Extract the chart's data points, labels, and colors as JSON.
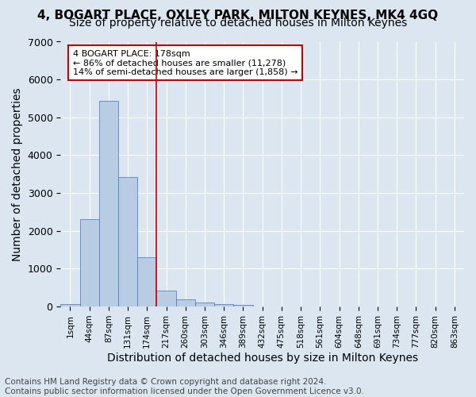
{
  "title1": "4, BOGART PLACE, OXLEY PARK, MILTON KEYNES, MK4 4GQ",
  "title2": "Size of property relative to detached houses in Milton Keynes",
  "xlabel": "Distribution of detached houses by size in Milton Keynes",
  "ylabel": "Number of detached properties",
  "footer1": "Contains HM Land Registry data © Crown copyright and database right 2024.",
  "footer2": "Contains public sector information licensed under the Open Government Licence v3.0.",
  "bin_labels": [
    "1sqm",
    "44sqm",
    "87sqm",
    "131sqm",
    "174sqm",
    "217sqm",
    "260sqm",
    "303sqm",
    "346sqm",
    "389sqm",
    "432sqm",
    "475sqm",
    "518sqm",
    "561sqm",
    "604sqm",
    "648sqm",
    "691sqm",
    "734sqm",
    "777sqm",
    "820sqm",
    "863sqm"
  ],
  "bar_values": [
    75,
    2310,
    5440,
    3420,
    1310,
    430,
    185,
    110,
    70,
    40,
    0,
    0,
    0,
    0,
    0,
    0,
    0,
    0,
    0,
    0,
    0
  ],
  "bar_color": "#b8cce4",
  "bar_edgecolor": "#4472c4",
  "vline_x_index": 4,
  "vline_color": "#cc0000",
  "annotation_text": "4 BOGART PLACE: 178sqm\n← 86% of detached houses are smaller (11,278)\n14% of semi-detached houses are larger (1,858) →",
  "annotation_box_color": "#ffffff",
  "annotation_box_edgecolor": "#cc0000",
  "ylim": [
    0,
    7000
  ],
  "yticks": [
    0,
    1000,
    2000,
    3000,
    4000,
    5000,
    6000,
    7000
  ],
  "background_color": "#dce6f1",
  "grid_color": "#ffffff",
  "title1_fontsize": 11,
  "title2_fontsize": 10,
  "xlabel_fontsize": 10,
  "ylabel_fontsize": 10,
  "footer_fontsize": 7.5,
  "tick_fontsize": 7.5,
  "ytick_fontsize": 9
}
